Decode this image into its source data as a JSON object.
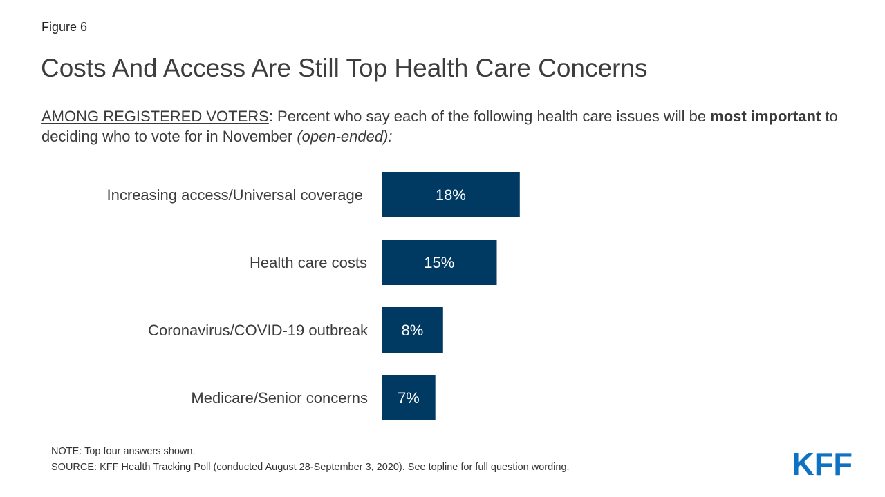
{
  "figure_label": "Figure 6",
  "title": "Costs And Access Are Still Top Health Care Concerns",
  "subtitle": {
    "lead": "AMONG REGISTERED VOTERS",
    "text1": ": Percent who say each of the following health care issues will be ",
    "bold": "most important",
    "text2": " to deciding who to vote for in November ",
    "italic": "(open-ended):"
  },
  "chart_data": {
    "type": "bar",
    "orientation": "horizontal",
    "categories": [
      "Increasing access/Universal coverage",
      "Health care costs",
      "Coronavirus/COVID-19 outbreak",
      "Medicare/Senior concerns"
    ],
    "values": [
      18,
      15,
      8,
      7
    ],
    "value_labels": [
      "18%",
      "15%",
      "8%",
      "7%"
    ],
    "bar_color": "#003a63",
    "label_color": "#ffffff"
  },
  "note": "NOTE: Top four answers shown.",
  "source": "SOURCE: KFF Health Tracking Poll (conducted August 28-September 3, 2020). See topline for full question wording.",
  "logo": {
    "text": "KFF",
    "color": "#0d72c4"
  }
}
